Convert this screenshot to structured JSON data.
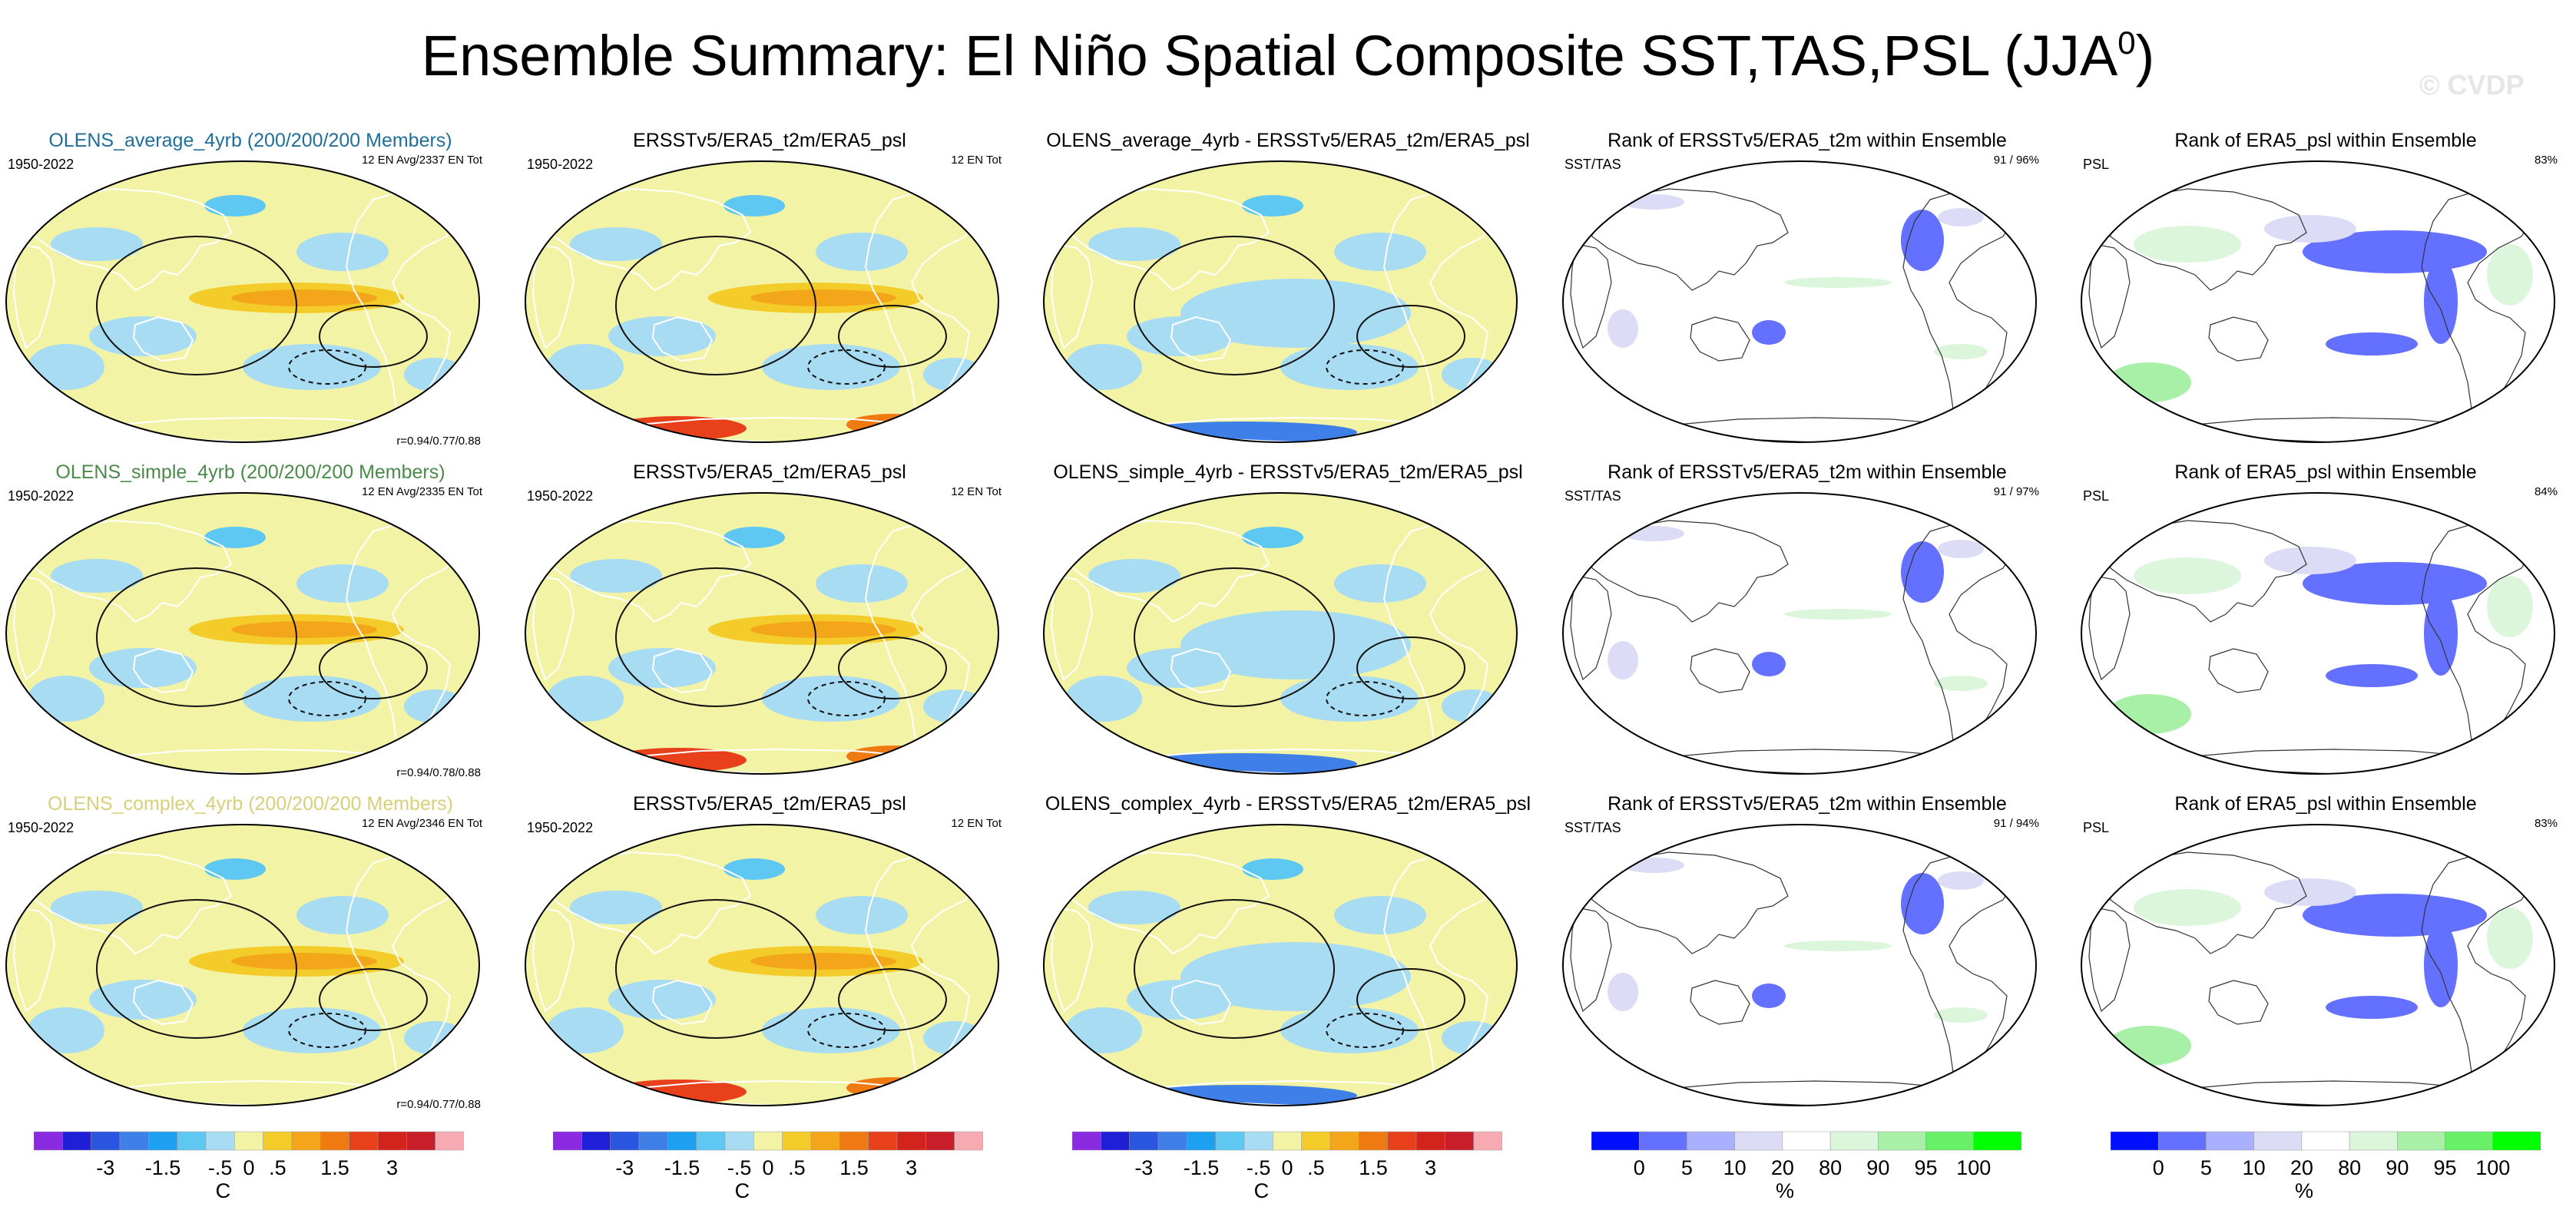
{
  "figure_title": "Ensemble Summary: El Niño Spatial Composite SST,TAS,PSL (JJA",
  "figure_title_sup": "0",
  "figure_title_end": ")",
  "watermark": "© CVDP",
  "title_colors": {
    "average": "#1f6f9a",
    "simple": "#4a8a4a",
    "complex": "#d6d07a"
  },
  "rows": [
    {
      "panels": [
        {
          "title": "OLENS_average_4yrb (200/200/200 Members)",
          "title_key": "average",
          "left": "1950-2022",
          "right": "12 EN Avg/2337 EN Tot",
          "bottom": "r=0.94/0.77/0.88",
          "kind": "comp"
        },
        {
          "title": "ERSSTv5/ERA5_t2m/ERA5_psl",
          "left": "1950-2022",
          "right": "12 EN Tot",
          "bottom": "",
          "kind": "obs"
        },
        {
          "title": "OLENS_average_4yrb - ERSSTv5/ERA5_t2m/ERA5_psl",
          "left": "",
          "right": "",
          "bottom": "",
          "kind": "diff"
        },
        {
          "title": "Rank of ERSSTv5/ERA5_t2m within Ensemble",
          "left": "SST/TAS",
          "right": "91 /  96%",
          "bottom": "",
          "kind": "rank_sst"
        },
        {
          "title": "Rank of ERA5_psl within Ensemble",
          "left": "PSL",
          "right": "83%",
          "bottom": "",
          "kind": "rank_psl"
        }
      ]
    },
    {
      "panels": [
        {
          "title": "OLENS_simple_4yrb (200/200/200 Members)",
          "title_key": "simple",
          "left": "1950-2022",
          "right": "12 EN Avg/2335 EN Tot",
          "bottom": "r=0.94/0.78/0.88",
          "kind": "comp"
        },
        {
          "title": "ERSSTv5/ERA5_t2m/ERA5_psl",
          "left": "1950-2022",
          "right": "12 EN Tot",
          "bottom": "",
          "kind": "obs"
        },
        {
          "title": "OLENS_simple_4yrb - ERSSTv5/ERA5_t2m/ERA5_psl",
          "left": "",
          "right": "",
          "bottom": "",
          "kind": "diff"
        },
        {
          "title": "Rank of ERSSTv5/ERA5_t2m within Ensemble",
          "left": "SST/TAS",
          "right": "91 /  97%",
          "bottom": "",
          "kind": "rank_sst"
        },
        {
          "title": "Rank of ERA5_psl within Ensemble",
          "left": "PSL",
          "right": "84%",
          "bottom": "",
          "kind": "rank_psl"
        }
      ]
    },
    {
      "panels": [
        {
          "title": "OLENS_complex_4yrb (200/200/200 Members)",
          "title_key": "complex",
          "left": "1950-2022",
          "right": "12 EN Avg/2346 EN Tot",
          "bottom": "r=0.94/0.77/0.88",
          "kind": "comp"
        },
        {
          "title": "ERSSTv5/ERA5_t2m/ERA5_psl",
          "left": "1950-2022",
          "right": "12 EN Tot",
          "bottom": "",
          "kind": "obs"
        },
        {
          "title": "OLENS_complex_4yrb - ERSSTv5/ERA5_t2m/ERA5_psl",
          "left": "",
          "right": "",
          "bottom": "",
          "kind": "diff"
        },
        {
          "title": "Rank of ERSSTv5/ERA5_t2m within Ensemble",
          "left": "SST/TAS",
          "right": "91 /  94%",
          "bottom": "",
          "kind": "rank_sst"
        },
        {
          "title": "Rank of ERA5_psl within Ensemble",
          "left": "PSL",
          "right": "83%",
          "bottom": "",
          "kind": "rank_psl"
        }
      ]
    }
  ],
  "legend_temp": {
    "colors": [
      "#8a2be2",
      "#1f1fd8",
      "#2a55e0",
      "#3f7fe8",
      "#1ea0f0",
      "#5ec8f2",
      "#a8dcf2",
      "#f3f3a6",
      "#f4cc2a",
      "#f4a61a",
      "#f07a12",
      "#e8401a",
      "#d2241c",
      "#c81e2a",
      "#f7aab2"
    ],
    "labels": [
      "-3",
      "-1.5",
      "-.5",
      "0",
      ".5",
      "1.5",
      "3"
    ],
    "unit": "C"
  },
  "legend_rank": {
    "colors": [
      "#0010ff",
      "#6470ff",
      "#a8b0ff",
      "#dcdcf6",
      "#ffffff",
      "#dcf6dc",
      "#a8f0a8",
      "#68f068",
      "#00ff00"
    ],
    "labels": [
      "0",
      "5",
      "10",
      "20",
      "80",
      "90",
      "95",
      "100"
    ],
    "unit": "%"
  }
}
